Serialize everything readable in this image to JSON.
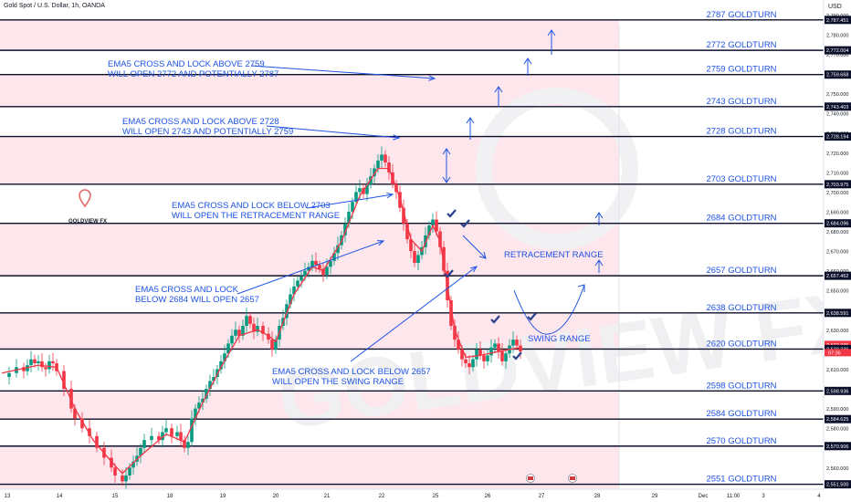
{
  "header": {
    "symbol_line": "Gold Spot / U.S. Dollar, 1h, OANDA",
    "currency": "USD"
  },
  "logo": {
    "text": "GOLDVIEW FX"
  },
  "watermark": "GOLDVIEW FX",
  "colors": {
    "zone_fill": "#fde6ec",
    "level_line": "#0b0f2a",
    "annotation": "#1e53e5",
    "candle_up": "#089981",
    "candle_down": "#f23645",
    "ema": "#f23645"
  },
  "chart_data": {
    "type": "line",
    "title": "",
    "ylim": [
      2549,
      2792
    ],
    "x_ticks": [
      "13",
      "14",
      "15",
      "18",
      "19",
      "20",
      "21",
      "22",
      "25",
      "26",
      "27",
      "28",
      "29",
      "Dec",
      "11:00",
      "3",
      "4"
    ],
    "y_ticks": [
      2560,
      2570,
      2580,
      2590,
      2600,
      2610,
      2620,
      2630,
      2640,
      2650,
      2660,
      2670,
      2680,
      2690,
      2700,
      2710,
      2720,
      2730,
      2740,
      2750,
      2760,
      2770,
      2780,
      2790
    ],
    "price_tags": [
      "2,787.451",
      "2,772.004",
      "2,759.668",
      "2,743.403",
      "2,728.194",
      "2,703.975",
      "2,684.096",
      "2,657.462",
      "2,638.591",
      "2,622.335",
      "2,620.236",
      "2,598.936",
      "2,584.625",
      "2,570.906",
      "2,551.500"
    ],
    "current_price": {
      "value": 2622.335,
      "label": "2,622.335",
      "countdown": "07:36"
    },
    "levels": [
      {
        "value": 2787.451,
        "label": "2787 GOLDTURN"
      },
      {
        "value": 2772.004,
        "label": "2772 GOLDTURN"
      },
      {
        "value": 2759.668,
        "label": "2759 GOLDTURN"
      },
      {
        "value": 2743.403,
        "label": "2743 GOLDTURN"
      },
      {
        "value": 2728.194,
        "label": "2728 GOLDTURN"
      },
      {
        "value": 2703.975,
        "label": "2703 GOLDTURN"
      },
      {
        "value": 2684.096,
        "label": "2684 GOLDTURN"
      },
      {
        "value": 2657.462,
        "label": "2657 GOLDTURN"
      },
      {
        "value": 2638.591,
        "label": "2638 GOLDTURN"
      },
      {
        "value": 2620.236,
        "label": "2620 GOLDTURN"
      },
      {
        "value": 2598.936,
        "label": "2598 GOLDTURN"
      },
      {
        "value": 2584.625,
        "label": "2584 GOLDTURN"
      },
      {
        "value": 2570.906,
        "label": "2570 GOLDTURN"
      },
      {
        "value": 2551.5,
        "label": "2551 GOLDTURN"
      }
    ],
    "zones": [
      [
        2772.004,
        2787.451
      ],
      [
        2743.403,
        2759.668
      ],
      [
        2703.975,
        2728.194
      ],
      [
        2657.462,
        2684.096
      ],
      [
        2620.236,
        2638.591
      ],
      [
        2584.625,
        2598.936
      ],
      [
        2549,
        2570.906
      ]
    ],
    "annotations": [
      {
        "lines": [
          "EMA5 CROSS AND LOCK ABOVE 2759",
          "WILL OPEN 2772 AND POTENTIALLY 2787"
        ]
      },
      {
        "lines": [
          "EMA5 CROSS AND LOCK ABOVE 2728",
          "WILL OPEN 2743 AND POTENTIALLY 2759"
        ]
      },
      {
        "lines": [
          "EMA5 CROSS AND LOCK BELOW 2703",
          "WILL OPEN THE RETRACEMENT RANGE"
        ]
      },
      {
        "lines": [
          "EMA5 CROSS AND LOCK",
          "BELOW 2684 WILL OPEN 2657"
        ]
      },
      {
        "lines": [
          "EMA5 CROSS AND LOCK BELOW 2657",
          "WILL OPEN THE SWING RANGE"
        ]
      },
      {
        "lines": [
          "RETRACEMENT RANGE"
        ]
      },
      {
        "lines": [
          "SWING RANGE"
        ]
      }
    ],
    "price_path": [
      [
        0,
        2606
      ],
      [
        4,
        2608
      ],
      [
        8,
        2611
      ],
      [
        12,
        2609
      ],
      [
        14,
        2612
      ],
      [
        16,
        2615
      ],
      [
        18,
        2613
      ],
      [
        20,
        2614
      ],
      [
        22,
        2611
      ],
      [
        24,
        2610
      ],
      [
        26,
        2614
      ],
      [
        28,
        2613
      ],
      [
        30,
        2609
      ],
      [
        34,
        2600
      ],
      [
        38,
        2590
      ],
      [
        40,
        2585
      ],
      [
        44,
        2580
      ],
      [
        48,
        2576
      ],
      [
        52,
        2570
      ],
      [
        56,
        2565
      ],
      [
        60,
        2560
      ],
      [
        62,
        2556
      ],
      [
        66,
        2553
      ],
      [
        68,
        2556
      ],
      [
        70,
        2560
      ],
      [
        72,
        2563
      ],
      [
        74,
        2566
      ],
      [
        76,
        2570
      ],
      [
        78,
        2574
      ],
      [
        82,
        2576
      ],
      [
        86,
        2574
      ],
      [
        88,
        2578
      ],
      [
        90,
        2580
      ],
      [
        93,
        2576
      ],
      [
        96,
        2578
      ],
      [
        98,
        2574
      ],
      [
        100,
        2570
      ],
      [
        102,
        2573
      ],
      [
        104,
        2585
      ],
      [
        106,
        2590
      ],
      [
        108,
        2593
      ],
      [
        110,
        2595
      ],
      [
        112,
        2600
      ],
      [
        114,
        2604
      ],
      [
        116,
        2606
      ],
      [
        118,
        2610
      ],
      [
        120,
        2614
      ],
      [
        122,
        2618
      ],
      [
        124,
        2623
      ],
      [
        126,
        2627
      ],
      [
        128,
        2630
      ],
      [
        130,
        2627
      ],
      [
        132,
        2632
      ],
      [
        134,
        2637
      ],
      [
        136,
        2633
      ],
      [
        138,
        2629
      ],
      [
        140,
        2632
      ],
      [
        143,
        2628
      ],
      [
        146,
        2625
      ],
      [
        148,
        2620
      ],
      [
        150,
        2625
      ],
      [
        152,
        2632
      ],
      [
        154,
        2636
      ],
      [
        156,
        2643
      ],
      [
        158,
        2648
      ],
      [
        160,
        2652
      ],
      [
        162,
        2655
      ],
      [
        164,
        2657
      ],
      [
        166,
        2660
      ],
      [
        168,
        2662
      ],
      [
        170,
        2665
      ],
      [
        172,
        2663
      ],
      [
        174,
        2661
      ],
      [
        176,
        2658
      ],
      [
        178,
        2662
      ],
      [
        180,
        2665
      ],
      [
        182,
        2669
      ],
      [
        184,
        2673
      ],
      [
        186,
        2678
      ],
      [
        188,
        2684
      ],
      [
        190,
        2690
      ],
      [
        192,
        2695
      ],
      [
        194,
        2700
      ],
      [
        196,
        2702
      ],
      [
        198,
        2699
      ],
      [
        200,
        2704
      ],
      [
        202,
        2708
      ],
      [
        204,
        2712
      ],
      [
        206,
        2716
      ],
      [
        208,
        2719
      ],
      [
        210,
        2715
      ],
      [
        212,
        2710
      ],
      [
        214,
        2704
      ],
      [
        216,
        2700
      ],
      [
        218,
        2692
      ],
      [
        220,
        2684
      ],
      [
        222,
        2676
      ],
      [
        224,
        2670
      ],
      [
        226,
        2664
      ],
      [
        228,
        2668
      ],
      [
        230,
        2672
      ],
      [
        232,
        2678
      ],
      [
        234,
        2683
      ],
      [
        236,
        2686
      ],
      [
        238,
        2680
      ],
      [
        240,
        2672
      ],
      [
        242,
        2660
      ],
      [
        244,
        2645
      ],
      [
        246,
        2632
      ],
      [
        248,
        2625
      ],
      [
        250,
        2620
      ],
      [
        252,
        2615
      ],
      [
        254,
        2613
      ],
      [
        256,
        2611
      ],
      [
        258,
        2615
      ],
      [
        260,
        2620
      ],
      [
        262,
        2617
      ],
      [
        264,
        2614
      ],
      [
        266,
        2617
      ],
      [
        268,
        2621
      ],
      [
        270,
        2623
      ],
      [
        272,
        2619
      ],
      [
        274,
        2614
      ],
      [
        276,
        2618
      ],
      [
        278,
        2622
      ],
      [
        280,
        2625
      ],
      [
        282,
        2622
      ],
      [
        284,
        2619
      ]
    ],
    "ema_path": [
      [
        0,
        2608
      ],
      [
        20,
        2612
      ],
      [
        30,
        2611
      ],
      [
        40,
        2590
      ],
      [
        50,
        2574
      ],
      [
        60,
        2563
      ],
      [
        66,
        2557
      ],
      [
        76,
        2566
      ],
      [
        90,
        2577
      ],
      [
        100,
        2573
      ],
      [
        110,
        2593
      ],
      [
        120,
        2611
      ],
      [
        130,
        2627
      ],
      [
        140,
        2630
      ],
      [
        146,
        2627
      ],
      [
        150,
        2624
      ],
      [
        160,
        2648
      ],
      [
        170,
        2662
      ],
      [
        176,
        2660
      ],
      [
        186,
        2675
      ],
      [
        196,
        2698
      ],
      [
        206,
        2712
      ],
      [
        212,
        2712
      ],
      [
        218,
        2697
      ],
      [
        224,
        2676
      ],
      [
        230,
        2670
      ],
      [
        236,
        2683
      ],
      [
        240,
        2675
      ],
      [
        244,
        2652
      ],
      [
        248,
        2630
      ],
      [
        254,
        2616
      ],
      [
        262,
        2617
      ],
      [
        272,
        2619
      ],
      [
        284,
        2621
      ]
    ]
  }
}
